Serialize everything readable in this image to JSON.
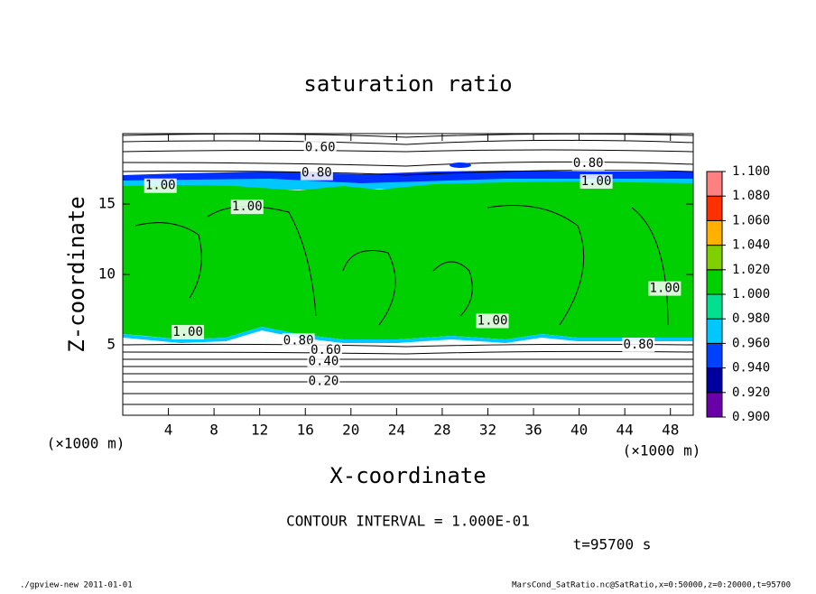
{
  "chart_data": {
    "type": "contour",
    "title": "saturation ratio",
    "xlabel": "X-coordinate",
    "ylabel": "Z-coordinate",
    "xunit": "(×1000 m)",
    "yunit": "(×1000 m)",
    "xlim": [
      0,
      50
    ],
    "ylim": [
      0,
      20
    ],
    "xticks": [
      4,
      8,
      12,
      16,
      20,
      24,
      28,
      32,
      36,
      40,
      44,
      48
    ],
    "yticks": [
      5,
      10,
      15
    ],
    "colorbar": {
      "levels": [
        {
          "value": 0.9,
          "label": "0.900"
        },
        {
          "value": 0.92,
          "label": "0.920"
        },
        {
          "value": 0.94,
          "label": "0.940"
        },
        {
          "value": 0.96,
          "label": "0.960"
        },
        {
          "value": 0.98,
          "label": "0.980"
        },
        {
          "value": 1.0,
          "label": "1.000"
        },
        {
          "value": 1.02,
          "label": "1.020"
        },
        {
          "value": 1.04,
          "label": "1.040"
        },
        {
          "value": 1.06,
          "label": "1.060"
        },
        {
          "value": 1.08,
          "label": "1.080"
        },
        {
          "value": 1.1,
          "label": "1.100"
        }
      ],
      "colors": [
        "#6a00a8",
        "#0000a0",
        "#0040ff",
        "#00c8ff",
        "#00e090",
        "#00d000",
        "#80d000",
        "#ffb000",
        "#ff3000",
        "#ff8080"
      ]
    },
    "contour_labels": [
      {
        "value": 0.6,
        "label": "0.60",
        "x": 17.3,
        "z": 19.0
      },
      {
        "value": 0.8,
        "label": "0.80",
        "x": 17.0,
        "z": 17.2
      },
      {
        "value": 0.8,
        "label": "0.80",
        "x": 40.8,
        "z": 17.9
      },
      {
        "value": 1.0,
        "label": "1.00",
        "x": 3.3,
        "z": 16.3
      },
      {
        "value": 1.0,
        "label": "1.00",
        "x": 41.5,
        "z": 16.6
      },
      {
        "value": 1.0,
        "label": "1.00",
        "x": 10.9,
        "z": 14.8
      },
      {
        "value": 1.0,
        "label": "1.00",
        "x": 5.7,
        "z": 5.9
      },
      {
        "value": 1.0,
        "label": "1.00",
        "x": 32.4,
        "z": 6.7
      },
      {
        "value": 1.0,
        "label": "1.00",
        "x": 47.5,
        "z": 9.0
      },
      {
        "value": 0.8,
        "label": "0.80",
        "x": 15.4,
        "z": 5.3
      },
      {
        "value": 0.6,
        "label": "0.60",
        "x": 17.8,
        "z": 4.6
      },
      {
        "value": 0.4,
        "label": "0.40",
        "x": 17.6,
        "z": 3.8
      },
      {
        "value": 0.2,
        "label": "0.20",
        "x": 17.6,
        "z": 2.4
      },
      {
        "value": 0.8,
        "label": "0.80",
        "x": 45.2,
        "z": 5.0
      }
    ],
    "contour_interval": "CONTOUR INTERVAL = 1.000E-01",
    "time": "t=95700 s",
    "footer_left": "./gpview-new  2011-01-01",
    "footer_right": "MarsCond_SatRatio.nc@SatRatio,x=0:50000,z=0:20000,t=95700"
  }
}
